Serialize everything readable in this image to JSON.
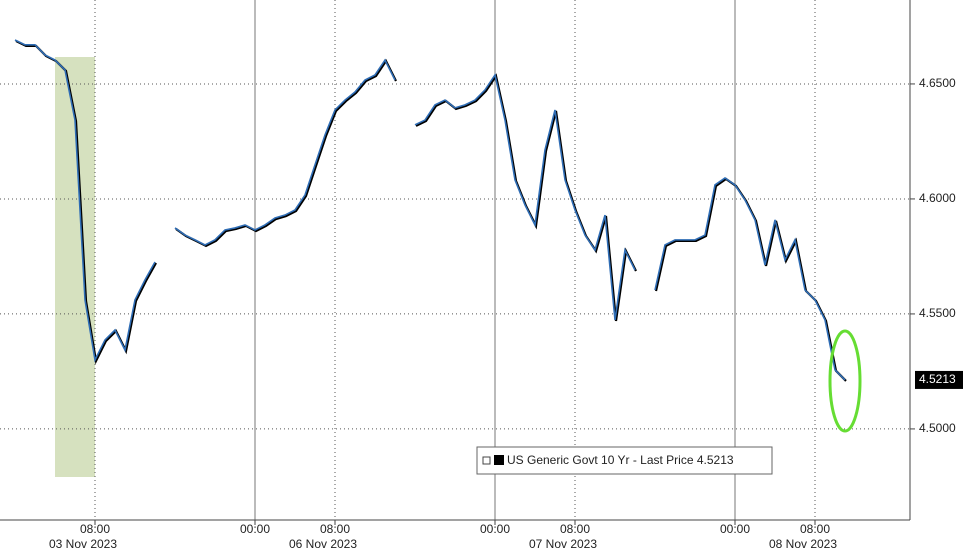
{
  "chart_data": {
    "type": "line",
    "categories": [
      null,
      null,
      null,
      null,
      null,
      null,
      null,
      null,
      "08:00",
      null,
      null,
      null,
      null,
      null,
      null,
      null,
      null,
      null,
      null,
      null,
      null,
      null,
      null,
      null,
      "00:00",
      null,
      null,
      null,
      null,
      null,
      null,
      null,
      "08:00",
      null,
      null,
      null,
      null,
      null,
      null,
      null,
      null,
      null,
      null,
      null,
      null,
      null,
      null,
      null,
      "00:00",
      null,
      null,
      null,
      null,
      null,
      null,
      null,
      "08:00",
      null,
      null,
      null,
      null,
      null,
      null,
      null,
      null,
      null,
      null,
      null,
      null,
      null,
      null,
      null,
      "00:00",
      null,
      null,
      null,
      null,
      null,
      null,
      null,
      "08:00",
      null,
      null,
      null
    ],
    "days": [
      "03 Nov 2023",
      "06 Nov 2023",
      "07 Nov 2023",
      "08 Nov 2023"
    ],
    "series": [
      {
        "name": "US Generic Govt 10 Yr - Last Price",
        "color": "#2f6db5",
        "values": [
          4.6691,
          4.667,
          4.667,
          4.6626,
          4.6604,
          4.6561,
          4.6343,
          4.5561,
          4.53,
          4.5387,
          4.543,
          4.5343,
          4.5561,
          4.5648,
          4.5726,
          null,
          4.5874,
          4.5843,
          4.5822,
          4.58,
          4.5822,
          4.5865,
          4.5874,
          4.5887,
          4.5865,
          4.5887,
          4.5917,
          4.593,
          4.5952,
          4.6017,
          4.6148,
          4.6278,
          4.6387,
          4.643,
          4.6465,
          4.6517,
          4.6539,
          4.6604,
          4.6517,
          null,
          4.6322,
          4.6343,
          4.6409,
          4.643,
          4.6396,
          4.6409,
          4.643,
          4.6474,
          4.6539,
          4.6343,
          4.6083,
          4.5974,
          4.5887,
          4.6213,
          4.6387,
          4.6083,
          4.5952,
          4.5843,
          4.5778,
          4.593,
          4.5474,
          4.5778,
          4.5691,
          null,
          4.5604,
          4.58,
          4.5822,
          4.5822,
          4.5822,
          4.5843,
          4.6061,
          4.6091,
          4.6061,
          4.5996,
          4.5909,
          4.5713,
          4.5909,
          4.5735,
          4.5822,
          4.5604,
          4.5561,
          4.5474,
          4.5257,
          4.5213
        ]
      }
    ],
    "last_price": {
      "value": 4.5213,
      "label": "4.5213"
    },
    "ylim": [
      4.4604,
      4.6865
    ],
    "yticks": [
      {
        "value": 4.5,
        "label": "4.5000"
      },
      {
        "value": 4.55,
        "label": "4.5500"
      },
      {
        "value": 4.6,
        "label": "4.6000"
      },
      {
        "value": 4.65,
        "label": "4.6500"
      }
    ],
    "grid": true
  }
}
